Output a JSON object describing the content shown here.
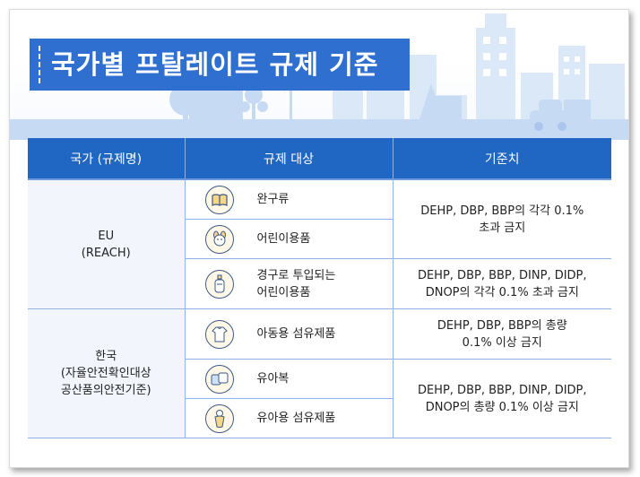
{
  "title": "국가별 프탈레이트 규제 기준",
  "table": {
    "headers": [
      "국가 (규제명)",
      "규제 대상",
      "기준치"
    ],
    "groups": [
      {
        "country": "EU",
        "regulation": "(REACH)",
        "items": [
          {
            "label": "완구류",
            "icon": "book-toy-icon"
          },
          {
            "label": "어린이용품",
            "icon": "plush-toy-icon"
          },
          {
            "label": "경구로 투입되는 어린이용품",
            "icon": "baby-bottle-icon"
          }
        ],
        "criteria": [
          "DEHP, DBP, BBP의 각각 0.1% 초과 금지",
          "DEHP, DBP, BBP, DINP, DIDP, DNOP의 각각 0.1% 초과 금지"
        ]
      },
      {
        "country": "한국",
        "regulation": "(자율안전확인대상 공산품의안전기준)",
        "items": [
          {
            "label": "아동용 섬유제품",
            "icon": "kids-clothing-icon"
          },
          {
            "label": "유아복",
            "icon": "baby-clothes-icon"
          },
          {
            "label": "유아용 섬유제품",
            "icon": "swaddle-icon"
          }
        ],
        "criteria": [
          "DEHP, DBP, BBP의 총량 0.1% 이상 금지",
          "DEHP, DBP, BBP, DINP, DIDP, DNOP의 총량 0.1% 이상 금지"
        ]
      }
    ]
  },
  "lines": {
    "eu_reg": "(REACH)",
    "eu_c1_a": "DEHP, DBP, BBP의 각각 0.1%",
    "eu_c1_b": "초과 금지",
    "eu_c2_a": "DEHP, DBP, BBP, DINP, DIDP,",
    "eu_c2_b": "DNOP의 각각 0.1% 초과 금지",
    "eu_i3_a": "경구로 투입되는",
    "eu_i3_b": "어린이용품",
    "kr_reg_a": "(자율안전확인대상",
    "kr_reg_b": "공산품의안전기준)",
    "kr_c1_a": "DEHP, DBP, BBP의 총량",
    "kr_c1_b": "0.1% 이상 금지",
    "kr_c2_a": "DEHP, DBP, BBP, DINP, DIDP,",
    "kr_c2_b": "DNOP의 총량 0.1% 이상 금지"
  },
  "colors": {
    "header_blue": "#1f67c2",
    "title_blue": "#2e6fcf",
    "skyline": "#d8e6f7"
  }
}
